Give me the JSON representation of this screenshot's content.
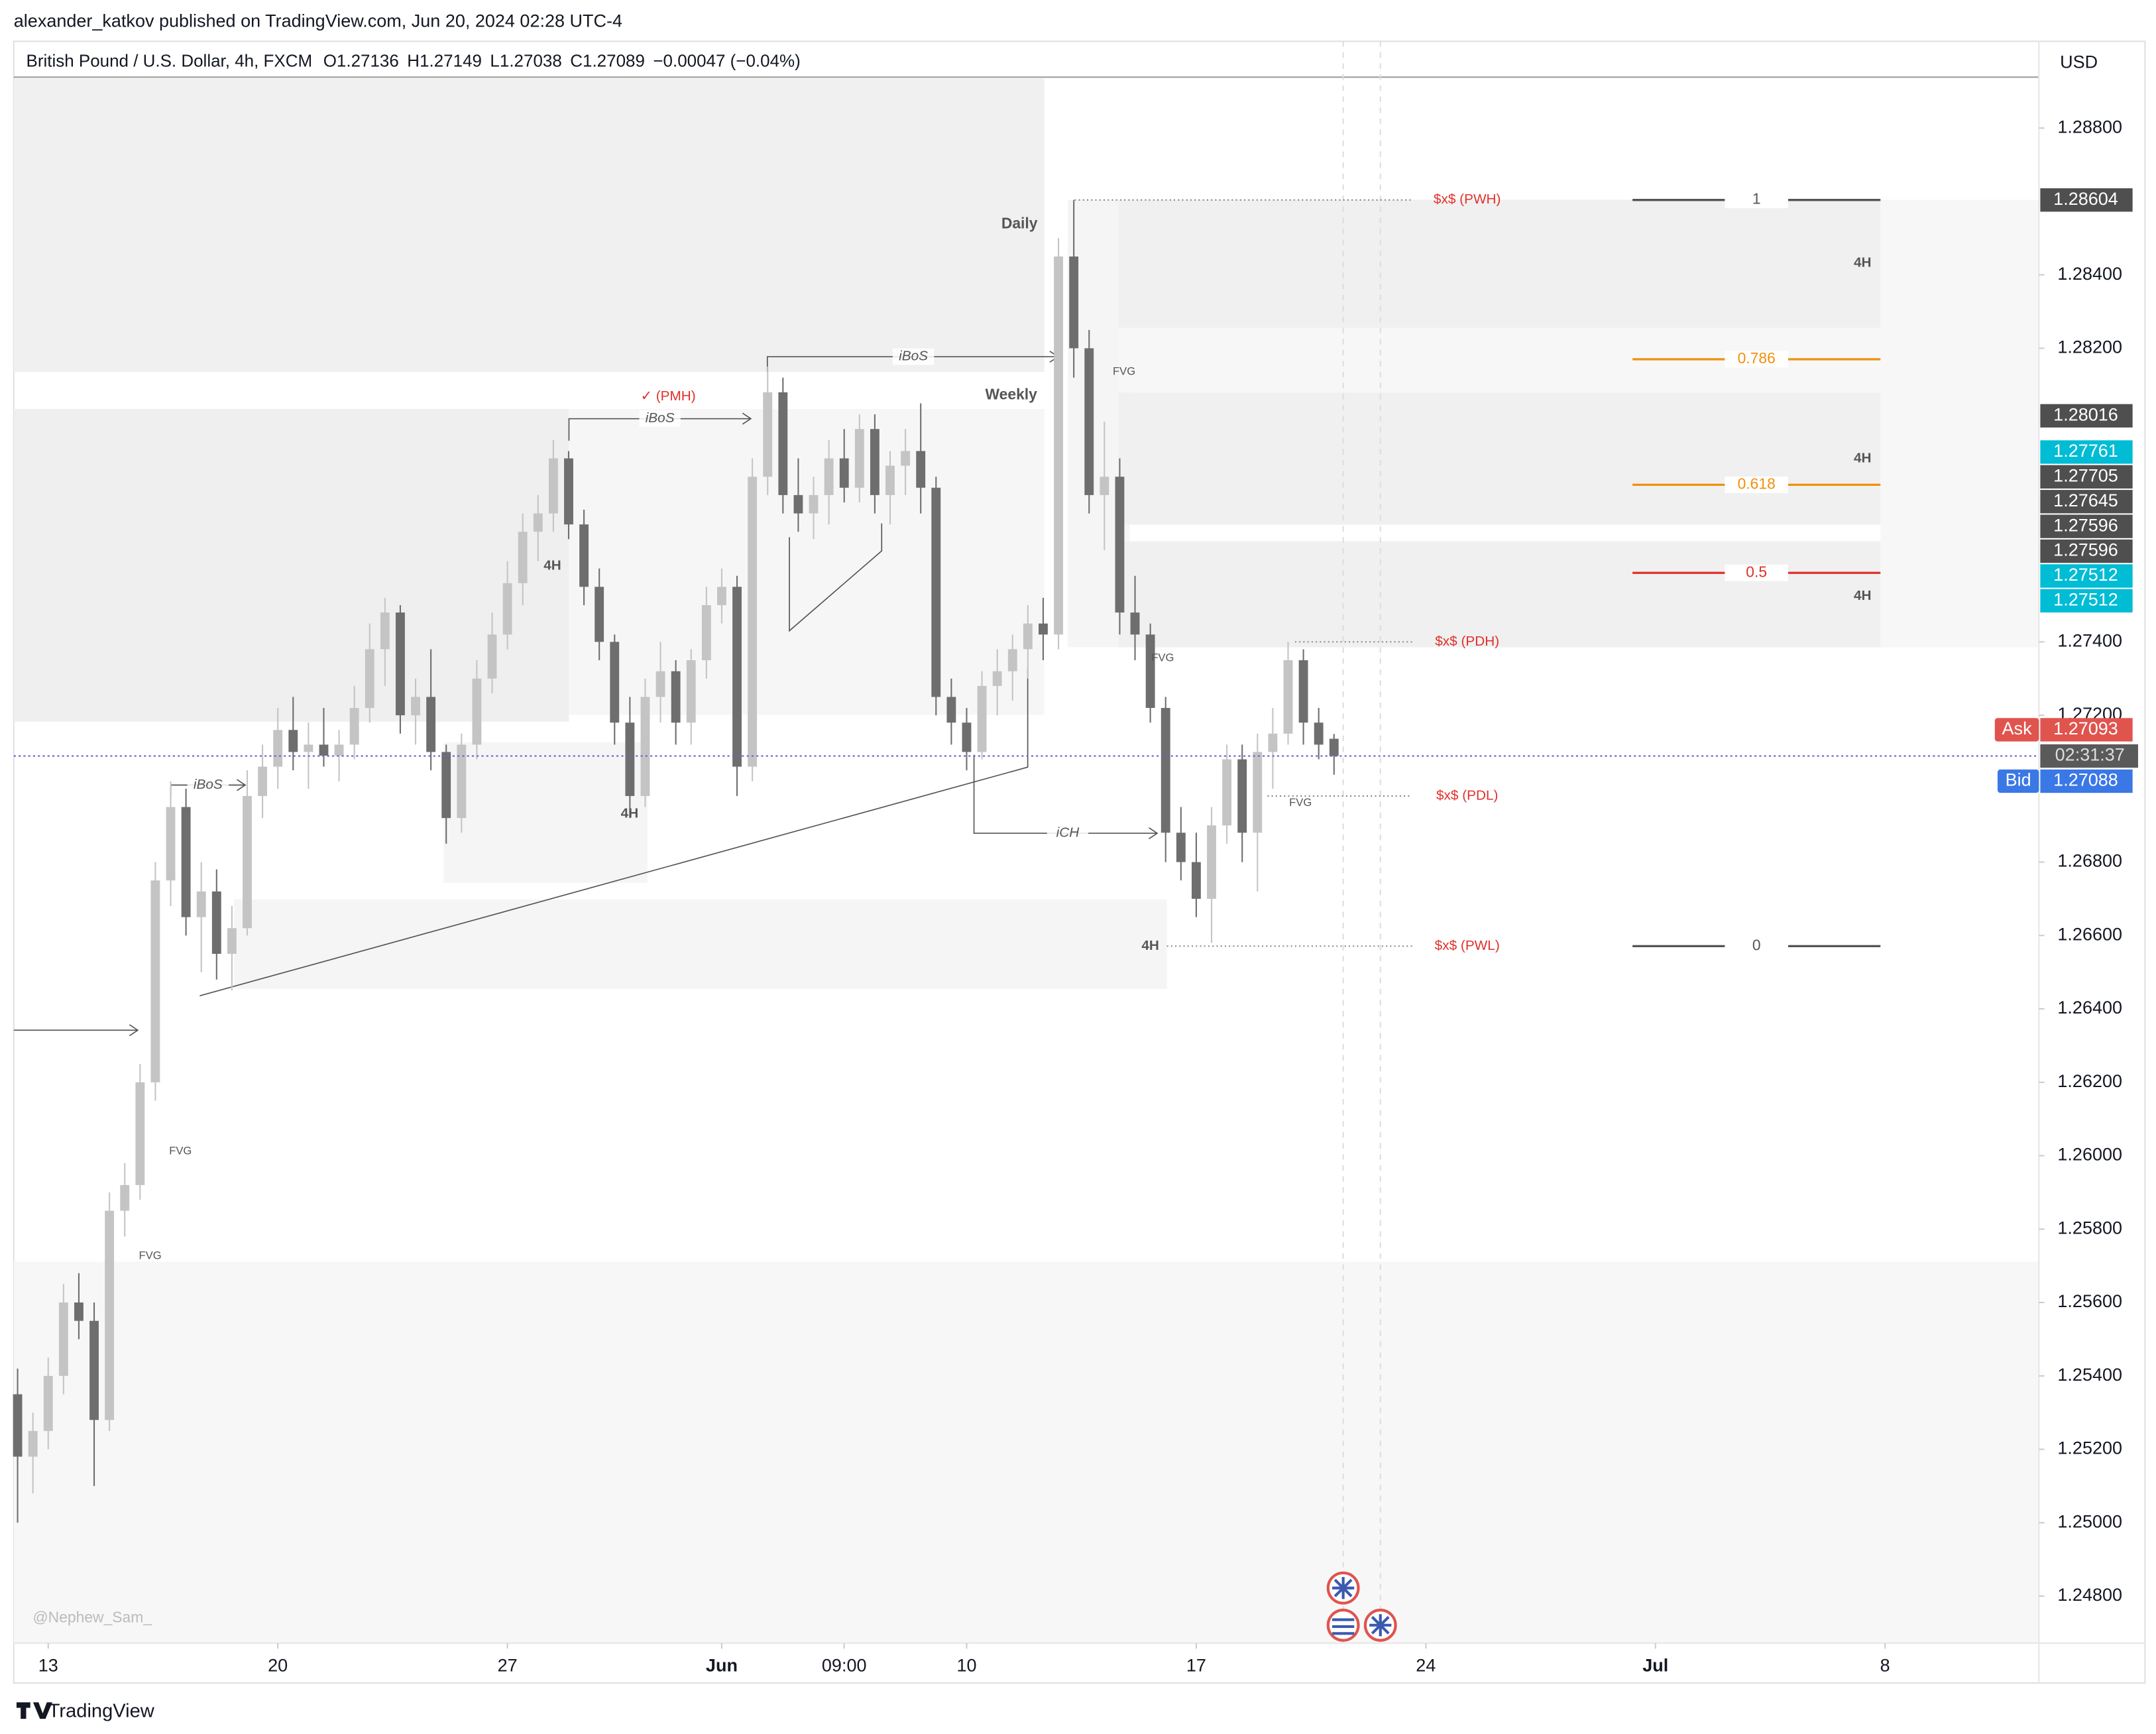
{
  "header": {
    "byline": "alexander_katkov published on TradingView.com, Jun 20, 2024 02:28 UTC-4",
    "symbol": "British Pound / U.S. Dollar, 4h, FXCM",
    "ohlc_labels": [
      "O",
      "H",
      "L",
      "C"
    ],
    "change": "−0.00047 (−0.04%)",
    "currency": "USD"
  },
  "chart_data": {
    "type": "candlestick",
    "x": [
      -4,
      -2,
      0,
      2,
      4,
      6,
      8,
      10,
      12,
      14,
      16,
      18,
      20,
      22,
      24,
      26,
      28,
      30,
      32,
      34,
      36,
      38,
      40,
      42,
      44,
      46,
      48,
      50,
      52,
      54,
      56,
      58,
      60,
      62,
      64,
      66,
      68,
      70,
      72,
      74,
      76,
      78,
      80,
      82,
      84,
      86,
      88,
      90,
      92,
      94,
      96,
      98,
      100,
      102,
      104,
      106,
      108,
      110,
      112,
      114,
      116,
      118,
      120,
      122,
      124,
      126,
      128,
      130,
      132,
      134,
      136,
      138,
      140,
      142,
      144,
      146,
      148,
      150,
      152,
      154,
      156,
      158,
      160,
      162,
      164,
      166,
      168
    ],
    "open": [
      1.2535,
      1.2518,
      1.2525,
      1.254,
      1.256,
      1.2555,
      1.2528,
      1.2585,
      1.2592,
      1.262,
      1.2675,
      1.2695,
      1.2665,
      1.2672,
      1.2655,
      1.2662,
      1.2698,
      1.2706,
      1.2716,
      1.271,
      1.2712,
      1.2709,
      1.2712,
      1.2722,
      1.2738,
      1.2748,
      1.272,
      1.2725,
      1.271,
      1.2692,
      1.2712,
      1.273,
      1.2742,
      1.2756,
      1.277,
      1.2775,
      1.279,
      1.2772,
      1.2755,
      1.274,
      1.2718,
      1.2698,
      1.2725,
      1.2732,
      1.2718,
      1.2735,
      1.275,
      1.2755,
      1.2706,
      1.2785,
      1.2808,
      1.278,
      1.2775,
      1.278,
      1.279,
      1.2782,
      1.2798,
      1.278,
      1.2788,
      1.2792,
      1.2782,
      1.2725,
      1.2718,
      1.271,
      1.2728,
      1.2732,
      1.2738,
      1.2745,
      1.2742,
      1.2845,
      1.282,
      1.278,
      1.2785,
      1.2748,
      1.2742,
      1.2722,
      1.2688,
      1.268,
      1.267,
      1.269,
      1.2708,
      1.2688,
      1.271,
      1.2715,
      1.2735,
      1.2718,
      1.27136
    ],
    "high": [
      1.2542,
      1.253,
      1.2545,
      1.2565,
      1.2568,
      1.256,
      1.259,
      1.2598,
      1.2625,
      1.268,
      1.2702,
      1.27,
      1.268,
      1.2678,
      1.2668,
      1.2705,
      1.2712,
      1.2722,
      1.2725,
      1.2718,
      1.2722,
      1.2716,
      1.2728,
      1.2745,
      1.2752,
      1.275,
      1.273,
      1.2738,
      1.2712,
      1.2715,
      1.2735,
      1.2748,
      1.2762,
      1.2775,
      1.278,
      1.2795,
      1.2792,
      1.2776,
      1.276,
      1.2742,
      1.2725,
      1.273,
      1.274,
      1.2735,
      1.2738,
      1.2755,
      1.276,
      1.2758,
      1.279,
      1.2815,
      1.2812,
      1.279,
      1.2785,
      1.2795,
      1.2798,
      1.2802,
      1.2802,
      1.2792,
      1.2798,
      1.2805,
      1.2785,
      1.273,
      1.2722,
      1.2732,
      1.2738,
      1.2742,
      1.275,
      1.2752,
      1.285,
      1.28604,
      1.2825,
      1.28,
      1.279,
      1.2758,
      1.2745,
      1.2725,
      1.2695,
      1.2688,
      1.2695,
      1.2712,
      1.2712,
      1.2715,
      1.2722,
      1.274,
      1.2738,
      1.2722,
      1.27149
    ],
    "low": [
      1.25,
      1.2508,
      1.252,
      1.2535,
      1.255,
      1.251,
      1.2525,
      1.2578,
      1.2588,
      1.2615,
      1.2668,
      1.266,
      1.265,
      1.2648,
      1.2645,
      1.266,
      1.2692,
      1.27,
      1.2705,
      1.27,
      1.2706,
      1.2702,
      1.2708,
      1.2718,
      1.2728,
      1.2715,
      1.2712,
      1.2705,
      1.2685,
      1.2688,
      1.2708,
      1.2726,
      1.2738,
      1.275,
      1.2762,
      1.277,
      1.2768,
      1.275,
      1.2735,
      1.2712,
      1.2692,
      1.2695,
      1.2718,
      1.2712,
      1.2712,
      1.273,
      1.2745,
      1.2698,
      1.2702,
      1.278,
      1.2775,
      1.277,
      1.2768,
      1.2772,
      1.2778,
      1.2778,
      1.2775,
      1.2772,
      1.278,
      1.2775,
      1.272,
      1.2712,
      1.2705,
      1.2708,
      1.272,
      1.2724,
      1.273,
      1.2735,
      1.2738,
      1.2812,
      1.2775,
      1.2765,
      1.2742,
      1.2735,
      1.2718,
      1.268,
      1.2675,
      1.2665,
      1.2658,
      1.2685,
      1.268,
      1.2672,
      1.27,
      1.2712,
      1.2712,
      1.2708,
      1.27038
    ],
    "close": [
      1.2518,
      1.2525,
      1.254,
      1.256,
      1.2555,
      1.2528,
      1.2585,
      1.2592,
      1.262,
      1.2675,
      1.2695,
      1.2665,
      1.2672,
      1.2655,
      1.2662,
      1.2698,
      1.2706,
      1.2716,
      1.271,
      1.2712,
      1.2709,
      1.2712,
      1.2722,
      1.2738,
      1.2748,
      1.272,
      1.2725,
      1.271,
      1.2692,
      1.2712,
      1.273,
      1.2742,
      1.2756,
      1.277,
      1.2775,
      1.279,
      1.2772,
      1.2755,
      1.274,
      1.2718,
      1.2698,
      1.2725,
      1.2732,
      1.2718,
      1.2735,
      1.275,
      1.2755,
      1.2706,
      1.2785,
      1.2808,
      1.278,
      1.2775,
      1.278,
      1.279,
      1.2782,
      1.2798,
      1.278,
      1.2788,
      1.2792,
      1.2782,
      1.2725,
      1.2718,
      1.271,
      1.2728,
      1.2732,
      1.2738,
      1.2745,
      1.2742,
      1.2845,
      1.282,
      1.278,
      1.2785,
      1.2748,
      1.2742,
      1.2722,
      1.2688,
      1.268,
      1.267,
      1.269,
      1.2708,
      1.2688,
      1.271,
      1.2715,
      1.2735,
      1.2718,
      1.2712,
      1.27089
    ],
    "up_color": "#c4c4c4",
    "down_color": "#6e6e6e",
    "xlim": [
      -4.5,
      260.1
    ],
    "xticks": [
      {
        "value": 0,
        "label": "13"
      },
      {
        "value": 30,
        "label": "20"
      },
      {
        "value": 60,
        "label": "27"
      },
      {
        "value": 88,
        "label": "Jun"
      },
      {
        "value": 104,
        "label": "09:00"
      },
      {
        "value": 120,
        "label": "10"
      },
      {
        "value": 150,
        "label": "17"
      },
      {
        "value": 180,
        "label": "24"
      },
      {
        "value": 210,
        "label": "Jul"
      },
      {
        "value": 240,
        "label": "8"
      }
    ],
    "ylim": [
      1.24672,
      1.28935
    ],
    "yticks": [
      {
        "value": 1.288,
        "label": "1.28800"
      },
      {
        "value": 1.284,
        "label": "1.28400"
      },
      {
        "value": 1.282,
        "label": "1.28200"
      },
      {
        "value": 1.274,
        "label": "1.27400"
      },
      {
        "value": 1.272,
        "label": "1.27200"
      },
      {
        "value": 1.268,
        "label": "1.26800"
      },
      {
        "value": 1.266,
        "label": "1.26600"
      },
      {
        "value": 1.264,
        "label": "1.26400"
      },
      {
        "value": 1.262,
        "label": "1.26200"
      },
      {
        "value": 1.26,
        "label": "1.26000"
      },
      {
        "value": 1.258,
        "label": "1.25800"
      },
      {
        "value": 1.256,
        "label": "1.25600"
      },
      {
        "value": 1.254,
        "label": "1.25400"
      },
      {
        "value": 1.252,
        "label": "1.25200"
      },
      {
        "value": 1.25,
        "label": "1.25000"
      },
      {
        "value": 1.248,
        "label": "1.24800"
      }
    ],
    "price_labels": [
      {
        "value": 1.28604,
        "color": "#4f4f4f"
      },
      {
        "value": 1.28016,
        "color": "#4f4f4f"
      },
      {
        "value": 1.27761,
        "color": "#00bcd4"
      },
      {
        "value": 1.27705,
        "color": "#4f4f4f"
      },
      {
        "value": 1.27645,
        "color": "#4f4f4f"
      },
      {
        "value": 1.27596,
        "color": "#4f4f4f"
      },
      {
        "value": 1.27596,
        "color": "#4f4f4f"
      },
      {
        "value": 1.27512,
        "color": "#00bcd4"
      },
      {
        "value": 1.27512,
        "color": "#00bcd4"
      }
    ],
    "ask": {
      "label": "Ask",
      "value": 1.27093,
      "color": "#e0544e"
    },
    "bid": {
      "label": "Bid",
      "value": 1.27088,
      "color": "#3a78e6"
    },
    "countdown": "02:31:37",
    "fib": {
      "ratios": [
        1,
        0.786,
        0.618,
        0.5,
        0
      ],
      "prices": [
        1.28604,
        1.2817,
        1.27828,
        1.27588,
        1.26571
      ],
      "colors": [
        "#555555",
        "#f0900c",
        "#f0900c",
        "#e0302a",
        "#555555"
      ]
    },
    "liquidity": [
      {
        "label": "$x$ (PWH)",
        "price": 1.28604
      },
      {
        "label": "$x$ (PDH)",
        "price": 1.274
      },
      {
        "label": "$x$ (PDL)",
        "price": 1.2698
      },
      {
        "label": "$x$ (PWL)",
        "price": 1.26571
      }
    ],
    "labels": [
      "Daily",
      "Weekly",
      "4H",
      "4H",
      "4H",
      "4H",
      "4H",
      "4H",
      "FVG",
      "FVG",
      "FVG",
      "FVG",
      "FVG",
      "iBoS",
      "iBoS",
      "iBoS",
      "iCH",
      "✓ (PMH)",
      "@Nephew_Sam_"
    ]
  },
  "footer": {
    "brand": "TradingView"
  }
}
